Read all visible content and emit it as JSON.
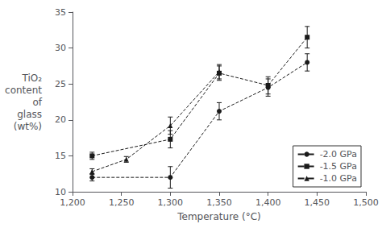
{
  "chart_data": {
    "type": "line",
    "xlabel": "Temperature (°C)",
    "ylabel": "TiO₂\ncontent\nof\nglass\n(wt%)",
    "xlim": [
      1200,
      1500
    ],
    "ylim": [
      10,
      35
    ],
    "xticks": [
      1200,
      1250,
      1300,
      1350,
      1400,
      1450,
      1500
    ],
    "yticks": [
      10,
      15,
      20,
      25,
      30,
      35
    ],
    "color": "#1a1a1a",
    "grid": false,
    "legend": "lower right",
    "series": [
      {
        "name": "-2.0 GPa",
        "marker": "circle",
        "line_style": "dashed",
        "x": [
          1220,
          1300,
          1350,
          1400,
          1440
        ],
        "values": [
          12.0,
          12.0,
          21.2,
          24.5,
          28.0
        ],
        "yerr": [
          0.5,
          1.5,
          1.2,
          1.2,
          1.2
        ]
      },
      {
        "name": "-1.5 GPa",
        "marker": "square",
        "line_style": "dashed",
        "x": [
          1220,
          1300,
          1350,
          1400,
          1440
        ],
        "values": [
          15.0,
          17.3,
          26.5,
          24.8,
          31.5
        ],
        "yerr": [
          0.5,
          1.2,
          1.0,
          1.2,
          1.5
        ]
      },
      {
        "name": "-1.0 GPa",
        "marker": "triangle",
        "line_style": "dashed",
        "x": [
          1220,
          1255,
          1300,
          1350
        ],
        "values": [
          12.8,
          14.5,
          19.2,
          26.7
        ],
        "yerr": [
          0.4,
          0.4,
          1.2,
          1.0
        ]
      }
    ]
  }
}
